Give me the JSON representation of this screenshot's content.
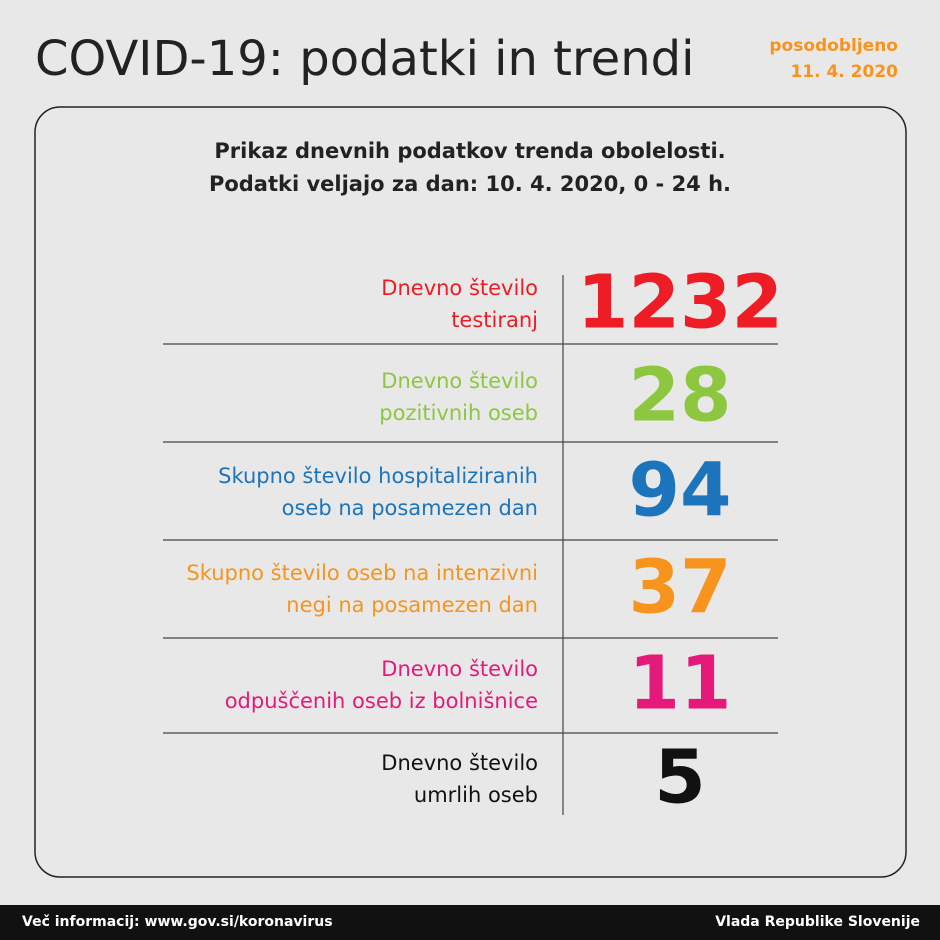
{
  "header": {
    "title": "COVID-19: podatki in trendi",
    "updated": [
      "posodobljeno",
      "11. 4. 2020"
    ]
  },
  "panel": {
    "subtitle": [
      "Prikaz dnevnih podatkov trenda obolelosti.",
      "Podatki veljajo za dan: 10. 4. 2020, 0 - 24 h."
    ],
    "rows": [
      {
        "label": [
          "Dnevno število",
          "testiranj"
        ],
        "value": 1232,
        "color": "#ee1c25"
      },
      {
        "label": [
          "Dnevno število",
          "pozitivnih oseb"
        ],
        "value": 28,
        "color": "#8dc63f"
      },
      {
        "label": [
          "Skupno število hospitaliziranih",
          "oseb na posamezen dan"
        ],
        "value": 94,
        "color": "#1c75bc"
      },
      {
        "label": [
          "Skupno število oseb na intenzivni",
          "negi na posamezen dan"
        ],
        "value": 37,
        "color": "#f7941d"
      },
      {
        "label": [
          "Dnevno število",
          "odpuščenih oseb iz bolnišnice"
        ],
        "value": 11,
        "color": "#e5197a"
      },
      {
        "label": [
          "Dnevno število",
          "umrlih oseb"
        ],
        "value": 5,
        "color": "#111111"
      }
    ]
  },
  "footer": {
    "left": "Več informacij: www.gov.si/koronavirus",
    "right": "Vlada Republike Slovenije"
  }
}
